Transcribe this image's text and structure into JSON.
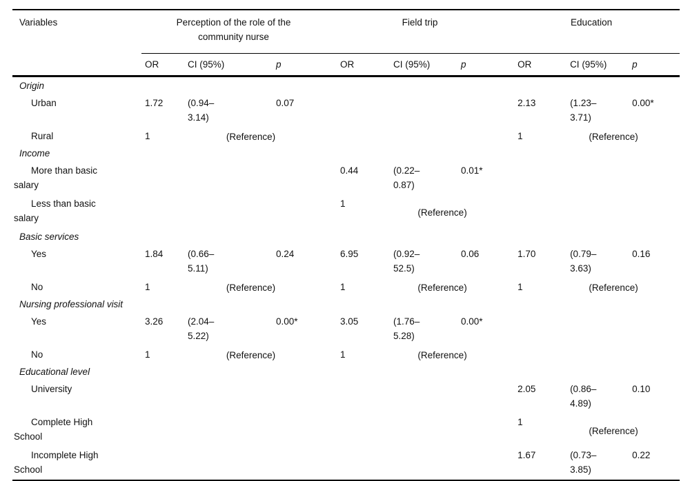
{
  "table": {
    "variables_header": "Variables",
    "groups": [
      {
        "label": "Perception of the role of the\ncommunity nurse"
      },
      {
        "label": "Field trip"
      },
      {
        "label": "Education"
      }
    ],
    "sub_headers": [
      "OR",
      "CI (95%)",
      "p",
      "OR",
      "CI (95%)",
      "p",
      "OR",
      "CI (95%)",
      "p"
    ],
    "rows": [
      {
        "kind": "section",
        "label": "Origin"
      },
      {
        "kind": "data",
        "label": "Urban",
        "cells": [
          {
            "or": "1.72",
            "ci": "(0.94–\n3.14)",
            "p": "0.07"
          },
          {},
          {
            "or": "2.13",
            "ci": "(1.23–\n3.71)",
            "p": "0.00*"
          }
        ]
      },
      {
        "kind": "data",
        "label": "Rural",
        "cells": [
          {
            "or": "1",
            "ref": "(Reference)"
          },
          {},
          {
            "or": "1",
            "ref": "(Reference)"
          }
        ]
      },
      {
        "kind": "section",
        "label": "Income"
      },
      {
        "kind": "data",
        "label": "More than basic\nsalary",
        "cells": [
          {},
          {
            "or": "0.44",
            "ci": "(0.22–\n0.87)",
            "p": "0.01*"
          },
          {}
        ]
      },
      {
        "kind": "data",
        "label": "Less than basic\nsalary",
        "cells": [
          {},
          {
            "or": "1",
            "ref": "(Reference)"
          },
          {}
        ]
      },
      {
        "kind": "section",
        "label": "Basic services"
      },
      {
        "kind": "data",
        "label": "Yes",
        "cells": [
          {
            "or": "1.84",
            "ci": "(0.66–\n5.11)",
            "p": "0.24"
          },
          {
            "or": "6.95",
            "ci": "(0.92–\n52.5)",
            "p": "0.06"
          },
          {
            "or": "1.70",
            "ci": "(0.79–\n3.63)",
            "p": "0.16"
          }
        ]
      },
      {
        "kind": "data",
        "label": "No",
        "cells": [
          {
            "or": "1",
            "ref": "(Reference)"
          },
          {
            "or": "1",
            "ref": "(Reference)"
          },
          {
            "or": "1",
            "ref": "(Reference)"
          }
        ]
      },
      {
        "kind": "section",
        "label": "Nursing professional visit"
      },
      {
        "kind": "data",
        "label": "Yes",
        "cells": [
          {
            "or": "3.26",
            "ci": "(2.04–\n5.22)",
            "p": "0.00*"
          },
          {
            "or": "3.05",
            "ci": "(1.76–\n5.28)",
            "p": "0.00*"
          },
          {}
        ]
      },
      {
        "kind": "data",
        "label": "No",
        "cells": [
          {
            "or": "1",
            "ref": "(Reference)"
          },
          {
            "or": "1",
            "ref": "(Reference)"
          },
          {}
        ]
      },
      {
        "kind": "section",
        "label": "Educational level"
      },
      {
        "kind": "data",
        "label": "University",
        "cells": [
          {},
          {},
          {
            "or": "2.05",
            "ci": "(0.86–\n4.89)",
            "p": "0.10"
          }
        ]
      },
      {
        "kind": "data",
        "label": "Complete High\nSchool",
        "cells": [
          {},
          {},
          {
            "or": "1",
            "ref": "(Reference)"
          }
        ]
      },
      {
        "kind": "data",
        "label": "Incomplete High\nSchool",
        "cells": [
          {},
          {},
          {
            "or": "1.67",
            "ci": "(0.73–\n3.85)",
            "p": "0.22"
          }
        ]
      }
    ]
  }
}
